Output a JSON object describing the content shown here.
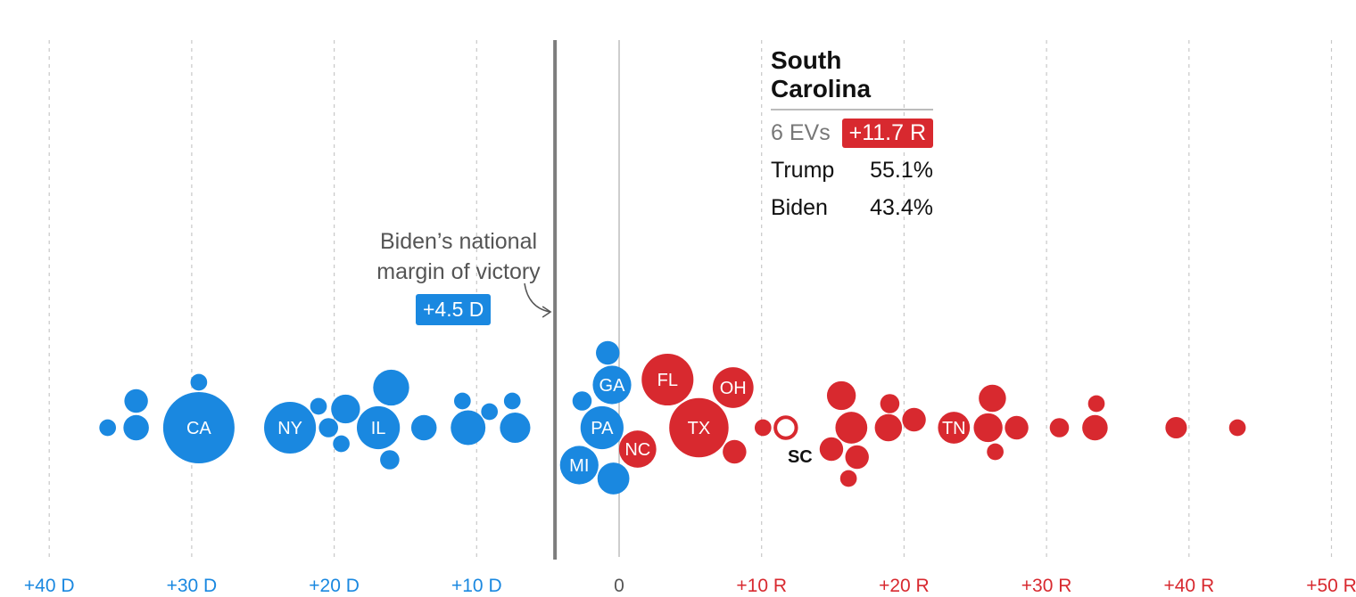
{
  "chart_data": {
    "type": "scatter",
    "x_axis": {
      "min": -40,
      "max": 50,
      "ticks": [
        {
          "value": -40,
          "label": "+40 D",
          "party": "D"
        },
        {
          "value": -30,
          "label": "+30 D",
          "party": "D"
        },
        {
          "value": -20,
          "label": "+20 D",
          "party": "D"
        },
        {
          "value": -10,
          "label": "+10 D",
          "party": "D"
        },
        {
          "value": 0,
          "label": "0",
          "party": "N"
        },
        {
          "value": 10,
          "label": "+10 R",
          "party": "R"
        },
        {
          "value": 20,
          "label": "+20 R",
          "party": "R"
        },
        {
          "value": 30,
          "label": "+30 R",
          "party": "R"
        },
        {
          "value": 40,
          "label": "+40 R",
          "party": "R"
        },
        {
          "value": 50,
          "label": "+50 R",
          "party": "R"
        }
      ]
    },
    "national_margin": {
      "value": -4.5,
      "text_line1": "Biden’s national",
      "text_line2": "margin of victory",
      "badge": "+4.5 D"
    },
    "colors": {
      "D": "#1a88e0",
      "R": "#d8292f",
      "N": "#555555"
    },
    "states": [
      {
        "margin": -35.9,
        "ev": 3,
        "party": "D",
        "label": ""
      },
      {
        "margin": -33.9,
        "ev": 6,
        "party": "D",
        "label": ""
      },
      {
        "margin": -33.9,
        "ev": 7,
        "party": "D",
        "label": ""
      },
      {
        "margin": -29.5,
        "ev": 55,
        "party": "D",
        "label": "CA"
      },
      {
        "margin": -29.5,
        "ev": 3,
        "party": "D",
        "label": ""
      },
      {
        "margin": -23.1,
        "ev": 29,
        "party": "D",
        "label": "NY"
      },
      {
        "margin": -21.1,
        "ev": 3,
        "party": "D",
        "label": ""
      },
      {
        "margin": -20.4,
        "ev": 4,
        "party": "D",
        "label": ""
      },
      {
        "margin": -19.5,
        "ev": 3,
        "party": "D",
        "label": ""
      },
      {
        "margin": -19.2,
        "ev": 9,
        "party": "D",
        "label": ""
      },
      {
        "margin": -16.0,
        "ev": 14,
        "party": "D",
        "label": ""
      },
      {
        "margin": -16.1,
        "ev": 4,
        "party": "D",
        "label": ""
      },
      {
        "margin": -16.9,
        "ev": 20,
        "party": "D",
        "label": "IL"
      },
      {
        "margin": -13.7,
        "ev": 7,
        "party": "D",
        "label": ""
      },
      {
        "margin": -10.6,
        "ev": 13,
        "party": "D",
        "label": ""
      },
      {
        "margin": -11.0,
        "ev": 3,
        "party": "D",
        "label": ""
      },
      {
        "margin": -9.1,
        "ev": 3,
        "party": "D",
        "label": ""
      },
      {
        "margin": -7.5,
        "ev": 3,
        "party": "D",
        "label": ""
      },
      {
        "margin": -7.3,
        "ev": 10,
        "party": "D",
        "label": ""
      },
      {
        "margin": -2.6,
        "ev": 4,
        "party": "D",
        "label": ""
      },
      {
        "margin": -0.5,
        "ev": 16,
        "party": "D",
        "label": "GA"
      },
      {
        "margin": -1.2,
        "ev": 20,
        "party": "D",
        "label": "PA"
      },
      {
        "margin": -2.8,
        "ev": 16,
        "party": "D",
        "label": "MI"
      },
      {
        "margin": -0.8,
        "ev": 6,
        "party": "D",
        "label": ""
      },
      {
        "margin": -0.4,
        "ev": 11,
        "party": "D",
        "label": ""
      },
      {
        "margin": 3.4,
        "ev": 29,
        "party": "R",
        "label": "FL"
      },
      {
        "margin": 1.3,
        "ev": 15,
        "party": "R",
        "label": "NC"
      },
      {
        "margin": 5.6,
        "ev": 38,
        "party": "R",
        "label": "TX"
      },
      {
        "margin": 8.0,
        "ev": 18,
        "party": "R",
        "label": "OH"
      },
      {
        "margin": 8.1,
        "ev": 6,
        "party": "R",
        "label": ""
      },
      {
        "margin": 10.1,
        "ev": 3,
        "party": "R",
        "label": ""
      },
      {
        "margin": 11.7,
        "ev": 6,
        "party": "R",
        "label": "SC",
        "selected": true,
        "evs_text": "6 EVs",
        "margin_text": "+11.7 R",
        "name": "South Carolina",
        "trump_label": "Trump",
        "trump_pct": "55.1%",
        "biden_label": "Biden",
        "biden_pct": "43.4%"
      },
      {
        "margin": 14.9,
        "ev": 6,
        "party": "R",
        "label": ""
      },
      {
        "margin": 16.1,
        "ev": 3,
        "party": "R",
        "label": ""
      },
      {
        "margin": 16.3,
        "ev": 11,
        "party": "R",
        "label": ""
      },
      {
        "margin": 16.7,
        "ev": 6,
        "party": "R",
        "label": ""
      },
      {
        "margin": 15.6,
        "ev": 9,
        "party": "R",
        "label": ""
      },
      {
        "margin": 19.0,
        "ev": 4,
        "party": "R",
        "label": ""
      },
      {
        "margin": 18.9,
        "ev": 8,
        "party": "R",
        "label": ""
      },
      {
        "margin": 20.7,
        "ev": 6,
        "party": "R",
        "label": ""
      },
      {
        "margin": 23.5,
        "ev": 11,
        "party": "R",
        "label": "TN"
      },
      {
        "margin": 26.2,
        "ev": 8,
        "party": "R",
        "label": ""
      },
      {
        "margin": 25.9,
        "ev": 9,
        "party": "R",
        "label": ""
      },
      {
        "margin": 26.4,
        "ev": 3,
        "party": "R",
        "label": ""
      },
      {
        "margin": 27.9,
        "ev": 6,
        "party": "R",
        "label": ""
      },
      {
        "margin": 30.9,
        "ev": 4,
        "party": "R",
        "label": ""
      },
      {
        "margin": 33.5,
        "ev": 3,
        "party": "R",
        "label": ""
      },
      {
        "margin": 33.4,
        "ev": 7,
        "party": "R",
        "label": ""
      },
      {
        "margin": 39.1,
        "ev": 5,
        "party": "R",
        "label": ""
      },
      {
        "margin": 43.4,
        "ev": 3,
        "party": "R",
        "label": ""
      }
    ]
  }
}
